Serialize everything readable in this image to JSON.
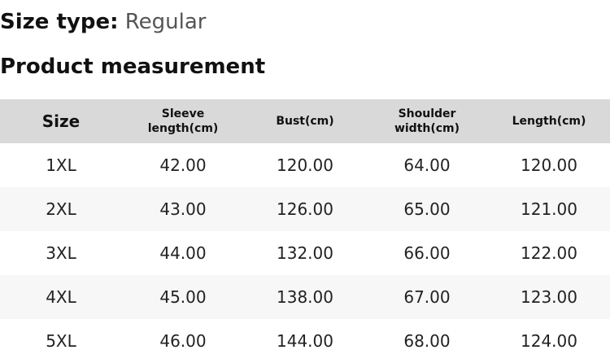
{
  "size_type": {
    "label": "Size type:",
    "value": "Regular"
  },
  "title": "Product measurement",
  "table": {
    "headers": [
      "Size",
      "Sleeve length(cm)",
      "Bust(cm)",
      "Shoulder width(cm)",
      "Length(cm)"
    ],
    "rows": [
      [
        "1XL",
        "42.00",
        "120.00",
        "64.00",
        "120.00"
      ],
      [
        "2XL",
        "43.00",
        "126.00",
        "65.00",
        "121.00"
      ],
      [
        "3XL",
        "44.00",
        "132.00",
        "66.00",
        "122.00"
      ],
      [
        "4XL",
        "45.00",
        "138.00",
        "67.00",
        "123.00"
      ],
      [
        "5XL",
        "46.00",
        "144.00",
        "68.00",
        "124.00"
      ]
    ]
  }
}
